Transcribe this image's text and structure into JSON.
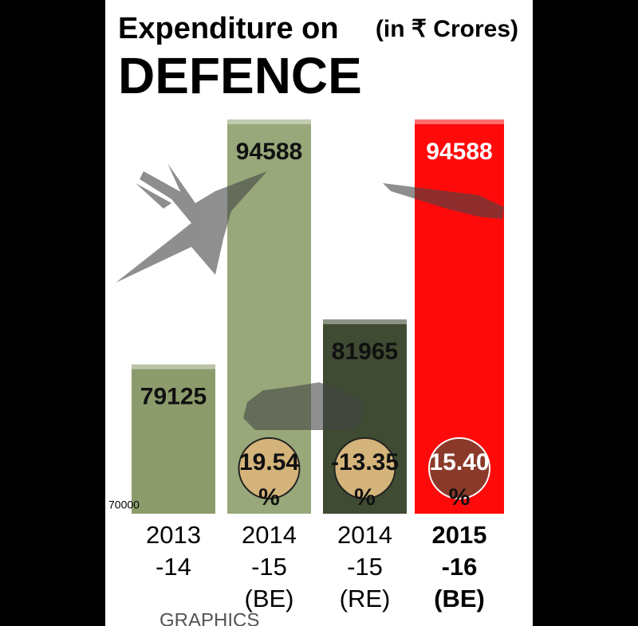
{
  "chart_data": {
    "type": "bar",
    "title": [
      "Expenditure on",
      "DEFENCE"
    ],
    "subtitle": "(in ₹ Crores)",
    "categories": [
      [
        "2013",
        "-14"
      ],
      [
        "2014",
        "-15",
        "(BE)"
      ],
      [
        "2014",
        "-15",
        "(RE)"
      ],
      [
        "2015",
        "-16",
        "(BE)"
      ]
    ],
    "values": [
      79125,
      94588,
      81965,
      94588
    ],
    "colors": [
      "#8c9b6c",
      "#98a87a",
      "#3f4b32",
      "#ff0a0a"
    ],
    "change_labels": [
      null,
      "19.54",
      "-13.35",
      "15.40"
    ],
    "change_unit": "%",
    "ylim": [
      70000,
      97000
    ],
    "yticks": [
      70000
    ],
    "source": "GRAPHICS"
  }
}
